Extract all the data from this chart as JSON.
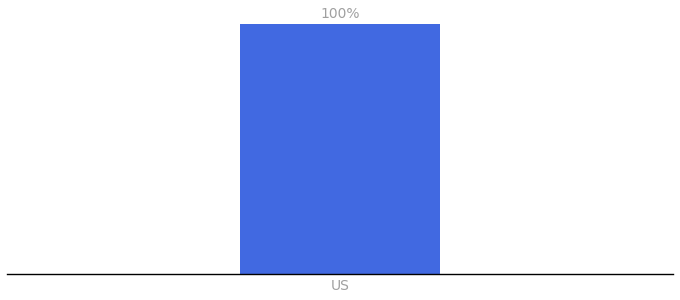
{
  "categories": [
    "US"
  ],
  "values": [
    100
  ],
  "bar_color": "#4169e1",
  "bar_width": 0.6,
  "label_text": "100%",
  "label_color": "#a0a0a0",
  "label_fontsize": 10,
  "xlabel_color": "#a0a0a0",
  "xlabel_fontsize": 10,
  "background_color": "#ffffff",
  "spine_color": "#000000",
  "ylim": [
    0,
    100
  ],
  "xlim": [
    -1.0,
    1.0
  ]
}
